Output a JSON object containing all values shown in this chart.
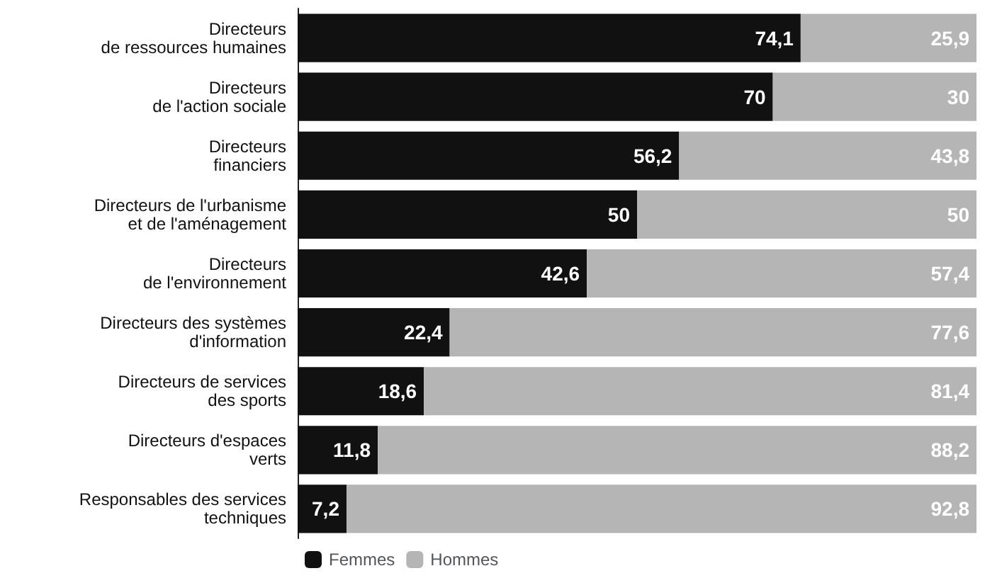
{
  "chart_data": {
    "type": "bar",
    "orientation": "horizontal",
    "stacked": true,
    "legend": "bottom left",
    "tick_labels": "y",
    "categories": [
      "Directeurs\nde ressources humaines",
      "Directeurs\nde l'action sociale",
      "Directeurs\nfinanciers",
      "Directeurs de l'urbanisme\net de l'aménagement",
      "Directeurs\nde l'environnement",
      "Directeurs des systèmes\nd'information",
      "Directeurs de services\ndes sports",
      "Directeurs d'espaces\nverts",
      "Responsables des services\ntechniques"
    ],
    "series": [
      {
        "name": "Femmes",
        "color": "#111111",
        "values": [
          74.1,
          70,
          56.2,
          50,
          42.6,
          22.4,
          18.6,
          11.8,
          7.2
        ],
        "value_labels": [
          "74,1",
          "70",
          "56,2",
          "50",
          "42,6",
          "22,4",
          "18,6",
          "11,8",
          "7,2"
        ]
      },
      {
        "name": "Hommes",
        "color": "#b5b5b5",
        "values": [
          25.9,
          30,
          43.8,
          50,
          57.4,
          77.6,
          81.4,
          88.2,
          92.8
        ],
        "value_labels": [
          "25,9",
          "30",
          "43,8",
          "50",
          "57,4",
          "77,6",
          "81,4",
          "88,2",
          "92,8"
        ]
      }
    ]
  }
}
